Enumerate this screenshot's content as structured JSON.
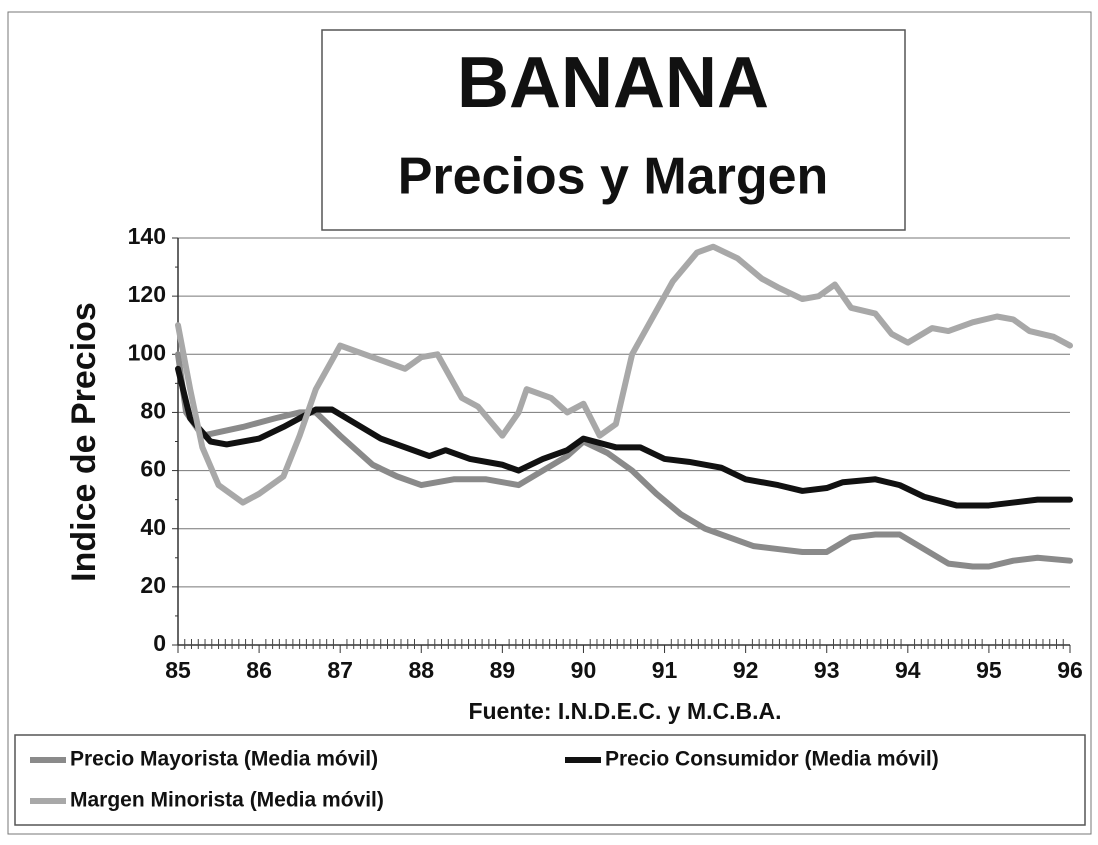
{
  "chart_data": {
    "type": "line",
    "title": "BANANA",
    "subtitle": "Precios y Margen",
    "y_label": "Indice de Precios",
    "x_label": "Fuente: I.N.D.E.C. y M.C.B.A.",
    "xlim": [
      85,
      96
    ],
    "xticks": [
      85,
      86,
      87,
      88,
      89,
      90,
      91,
      92,
      93,
      94,
      95,
      96
    ],
    "ylim": [
      0,
      140
    ],
    "yticks": [
      0,
      20,
      40,
      60,
      80,
      100,
      120,
      140
    ],
    "grid": true,
    "legend": "bottom",
    "series": [
      {
        "name": "Precio Mayorista (Media móvil)",
        "color": "#8a8a8a",
        "x": [
          85,
          85.1,
          85.3,
          85.8,
          86.2,
          86.5,
          86.7,
          87,
          87.4,
          87.7,
          88,
          88.4,
          88.8,
          89.2,
          89.5,
          89.8,
          90,
          90.3,
          90.6,
          90.9,
          91.2,
          91.5,
          91.8,
          92.1,
          92.4,
          92.7,
          93,
          93.3,
          93.6,
          93.9,
          94.2,
          94.5,
          94.8,
          95,
          95.3,
          95.6,
          96
        ],
        "values": [
          100,
          80,
          72,
          75,
          78,
          80,
          80,
          72,
          62,
          58,
          55,
          57,
          57,
          55,
          60,
          65,
          70,
          66,
          60,
          52,
          45,
          40,
          37,
          34,
          33,
          32,
          32,
          37,
          38,
          38,
          33,
          28,
          27,
          27,
          29,
          30,
          29
        ]
      },
      {
        "name": "Precio Consumidor (Media móvil)",
        "color": "#111111",
        "x": [
          85,
          85.15,
          85.4,
          85.6,
          86,
          86.3,
          86.7,
          86.9,
          87.2,
          87.5,
          87.8,
          88.1,
          88.3,
          88.6,
          89,
          89.2,
          89.5,
          89.8,
          90,
          90.4,
          90.7,
          91,
          91.3,
          91.7,
          92,
          92.4,
          92.7,
          93,
          93.2,
          93.6,
          93.9,
          94.2,
          94.6,
          95,
          95.3,
          95.6,
          96
        ],
        "values": [
          95,
          78,
          70,
          69,
          71,
          75,
          81,
          81,
          76,
          71,
          68,
          65,
          67,
          64,
          62,
          60,
          64,
          67,
          71,
          68,
          68,
          64,
          63,
          61,
          57,
          55,
          53,
          54,
          56,
          57,
          55,
          51,
          48,
          48,
          49,
          50,
          50
        ]
      },
      {
        "name": "Margen Minorista (Media móvil)",
        "color": "#a8a8a8",
        "x": [
          85,
          85.15,
          85.3,
          85.5,
          85.8,
          86,
          86.3,
          86.5,
          86.7,
          87,
          87.3,
          87.6,
          87.8,
          88,
          88.2,
          88.5,
          88.7,
          89,
          89.2,
          89.3,
          89.6,
          89.8,
          90,
          90.2,
          90.4,
          90.6,
          90.8,
          91.1,
          91.4,
          91.6,
          91.9,
          92.2,
          92.4,
          92.7,
          92.9,
          93.1,
          93.3,
          93.6,
          93.8,
          94,
          94.3,
          94.5,
          94.8,
          95.1,
          95.3,
          95.5,
          95.8,
          96
        ],
        "values": [
          110,
          88,
          68,
          55,
          49,
          52,
          58,
          72,
          88,
          103,
          100,
          97,
          95,
          99,
          100,
          85,
          82,
          72,
          80,
          88,
          85,
          80,
          83,
          72,
          76,
          100,
          110,
          125,
          135,
          137,
          133,
          126,
          123,
          119,
          120,
          124,
          116,
          114,
          107,
          104,
          109,
          108,
          111,
          113,
          112,
          108,
          106,
          103
        ]
      }
    ]
  }
}
